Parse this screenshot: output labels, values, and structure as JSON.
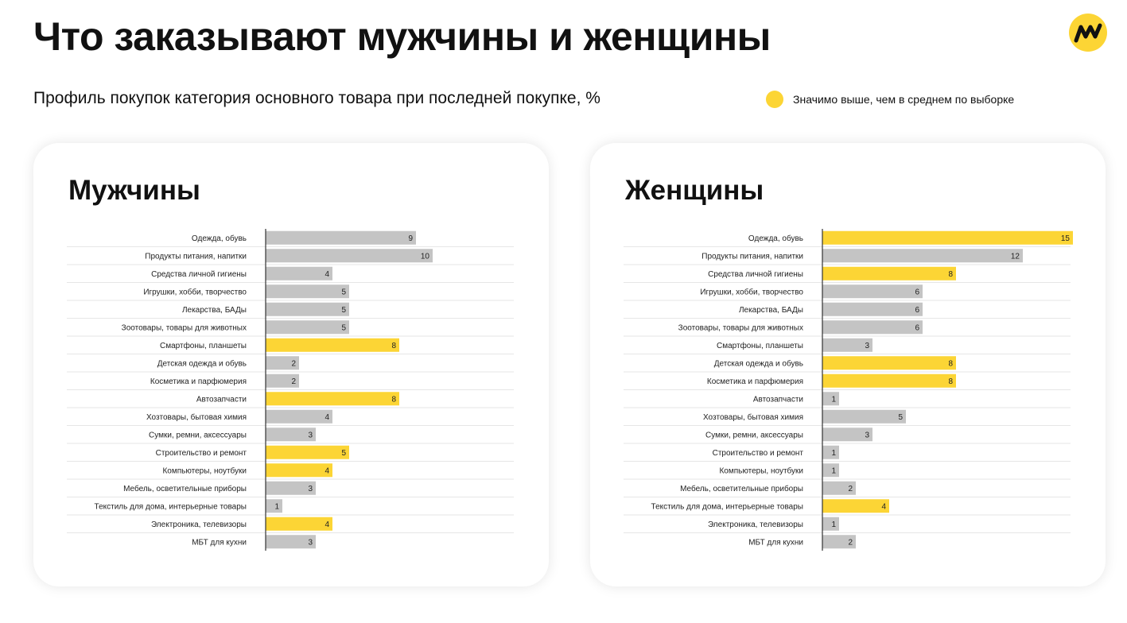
{
  "header": {
    "title": "Что заказывают мужчины и женщины",
    "subtitle": "Профиль покупок категория основного товара при последней покупке, %"
  },
  "legend": {
    "label": "Значимо выше, чем в среднем по выборке",
    "highlight_color": "#FCD535"
  },
  "logo": {
    "icon": "yandex-market-logo"
  },
  "colors": {
    "highlight": "#FCD535",
    "neutral": "#C4C4C4",
    "axis": "#333333",
    "separator": "#E6E6E6"
  },
  "chart_data": [
    {
      "type": "bar",
      "orientation": "horizontal",
      "title": "Мужчины",
      "xlim": [
        0,
        15
      ],
      "categories": [
        "Одежда, обувь",
        "Продукты питания, напитки",
        "Средства личной гигиены",
        "Игрушки, хобби, творчество",
        "Лекарства, БАДы",
        "Зоотовары, товары для животных",
        "Смартфоны, планшеты",
        "Детская одежда и обувь",
        "Косметика и парфюмерия",
        "Автозапчасти",
        "Хозтовары, бытовая химия",
        "Сумки, ремни, аксессуары",
        "Строительство и ремонт",
        "Компьютеры, ноутбуки",
        "Мебель, осветительные приборы",
        "Текстиль для дома, интерьерные товары",
        "Электроника, телевизоры",
        "МБТ для кухни"
      ],
      "values": [
        9,
        10,
        4,
        5,
        5,
        5,
        8,
        2,
        2,
        8,
        4,
        3,
        5,
        4,
        3,
        1,
        4,
        3
      ],
      "highlighted": [
        false,
        false,
        false,
        false,
        false,
        false,
        true,
        false,
        false,
        true,
        false,
        false,
        true,
        true,
        false,
        false,
        true,
        false
      ]
    },
    {
      "type": "bar",
      "orientation": "horizontal",
      "title": "Женщины",
      "xlim": [
        0,
        15
      ],
      "categories": [
        "Одежда, обувь",
        "Продукты питания, напитки",
        "Средства личной гигиены",
        "Игрушки, хобби, творчество",
        "Лекарства, БАДы",
        "Зоотовары, товары для животных",
        "Смартфоны, планшеты",
        "Детская одежда и обувь",
        "Косметика и парфюмерия",
        "Автозапчасти",
        "Хозтовары, бытовая химия",
        "Сумки, ремни, аксессуары",
        "Строительство и ремонт",
        "Компьютеры, ноутбуки",
        "Мебель, осветительные приборы",
        "Текстиль для дома, интерьерные товары",
        "Электроника, телевизоры",
        "МБТ для кухни"
      ],
      "values": [
        15,
        12,
        8,
        6,
        6,
        6,
        3,
        8,
        8,
        1,
        5,
        3,
        1,
        1,
        2,
        4,
        1,
        2
      ],
      "highlighted": [
        true,
        false,
        true,
        false,
        false,
        false,
        false,
        true,
        true,
        false,
        false,
        false,
        false,
        false,
        false,
        true,
        false,
        false
      ]
    }
  ]
}
